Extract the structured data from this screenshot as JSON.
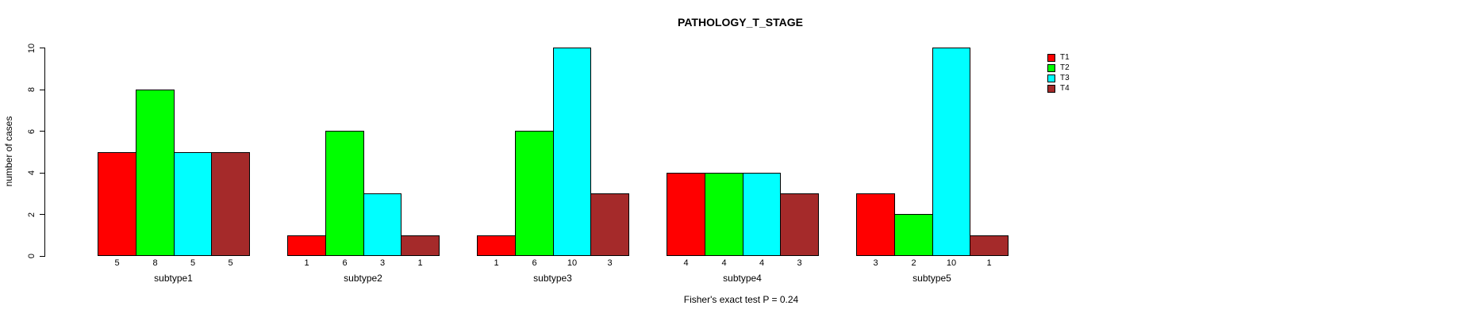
{
  "chart_data": {
    "type": "bar",
    "title": "PATHOLOGY_T_STAGE",
    "xlabel": "",
    "ylabel": "number of cases",
    "ylim": [
      0,
      10
    ],
    "yticks": [
      0,
      2,
      4,
      6,
      8,
      10
    ],
    "grid": false,
    "legend_position": "right",
    "bar_value_labels_shown": true,
    "categories": [
      "subtype1",
      "subtype2",
      "subtype3",
      "subtype4",
      "subtype5"
    ],
    "series": [
      {
        "name": "T1",
        "color": "#FF0000",
        "values": [
          5,
          1,
          1,
          4,
          3
        ]
      },
      {
        "name": "T2",
        "color": "#00FF00",
        "values": [
          8,
          6,
          6,
          4,
          2
        ]
      },
      {
        "name": "T3",
        "color": "#00FFFF",
        "values": [
          5,
          3,
          10,
          4,
          10
        ]
      },
      {
        "name": "T4",
        "color": "#A52A2A",
        "values": [
          5,
          1,
          3,
          3,
          1
        ]
      }
    ],
    "annotation": "Fisher's exact test P = 0.24"
  },
  "colors": {
    "background": "#FFFFFF",
    "axis": "#000000",
    "text": "#000000"
  }
}
